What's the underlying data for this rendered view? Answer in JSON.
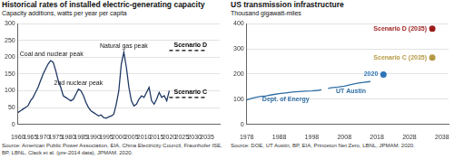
{
  "chart_data": [
    {
      "type": "line",
      "title": "Historical rates of installed electric-generating capacity",
      "subtitle": "Capacity additions, watts per year per capita",
      "source": "Source: American Public Power Association, EIA, China Electricity Council, Fraunhofer ISE, BP, LBNL, Clack et al. (pre-2014 data), JPMAM. 2020.",
      "x": [
        1960,
        1961,
        1962,
        1963,
        1964,
        1965,
        1966,
        1967,
        1968,
        1969,
        1970,
        1971,
        1972,
        1973,
        1974,
        1975,
        1976,
        1977,
        1978,
        1979,
        1980,
        1981,
        1982,
        1983,
        1984,
        1985,
        1986,
        1987,
        1988,
        1989,
        1990,
        1991,
        1992,
        1993,
        1994,
        1995,
        1996,
        1997,
        1998,
        1999,
        2000,
        2001,
        2002,
        2003,
        2004,
        2005,
        2006,
        2007,
        2008,
        2009,
        2010,
        2011,
        2012,
        2013,
        2014,
        2015,
        2016,
        2017,
        2018,
        2019,
        2020
      ],
      "values": [
        35,
        40,
        45,
        50,
        55,
        70,
        80,
        95,
        110,
        130,
        150,
        165,
        180,
        190,
        185,
        160,
        130,
        110,
        85,
        80,
        75,
        70,
        75,
        90,
        105,
        100,
        85,
        65,
        50,
        40,
        35,
        30,
        25,
        28,
        20,
        18,
        22,
        25,
        30,
        60,
        100,
        180,
        215,
        170,
        110,
        70,
        55,
        60,
        75,
        85,
        80,
        95,
        110,
        70,
        60,
        75,
        95,
        80,
        85,
        70,
        100
      ],
      "color": "#1f3864",
      "scenarios": [
        {
          "name": "Scenario D",
          "x": [
            2020,
            2035
          ],
          "values": [
            220,
            220
          ],
          "color": "#000000",
          "line_style": "dashed"
        },
        {
          "name": "Scenario C",
          "x": [
            2020,
            2035
          ],
          "values": [
            80,
            80
          ],
          "color": "#000000",
          "line_style": "dashed"
        }
      ],
      "annotations": [
        {
          "text": "Coal and nuclear peak",
          "x": 1973,
          "y": 190
        },
        {
          "text": "2nd nuclear peak",
          "x": 1984,
          "y": 105
        },
        {
          "text": "Natural gas peak",
          "x": 2002,
          "y": 215
        }
      ],
      "xlim": [
        1960,
        2040
      ],
      "xticks": [
        1960,
        1965,
        1970,
        1975,
        1980,
        1985,
        1990,
        1995,
        2000,
        2005,
        2010,
        2015,
        2020,
        2025,
        2030,
        2035
      ],
      "ylim": [
        0,
        300
      ],
      "yticks": [
        0,
        50,
        100,
        150,
        200,
        250,
        300
      ],
      "grid": true
    },
    {
      "type": "line",
      "title": "US transmission infrastructure",
      "subtitle": "Thousand gigawatt-miles",
      "source": "Source: DOE, UT Austin, BP, EIA, Princeton Net Zero, LBNL, JPMAM. 2020.",
      "series": [
        {
          "name": "Dept. of Energy",
          "color": "#2e6da4",
          "x": [
            1978,
            1980,
            1982,
            1984,
            1986,
            1988,
            1990,
            1992,
            1994,
            1996,
            1998,
            2000,
            2001
          ],
          "values": [
            97,
            105,
            110,
            113,
            118,
            122,
            125,
            128,
            130,
            132,
            133,
            135,
            137
          ]
        },
        {
          "name": "UT Austin",
          "color": "#2e6da4",
          "x": [
            2003,
            2004,
            2006,
            2008,
            2010,
            2012,
            2014,
            2016
          ],
          "values": [
            143,
            145,
            148,
            152,
            158,
            163,
            167,
            170
          ]
        },
        {
          "name": "2020",
          "color": "#2e75b6",
          "marker": "circle",
          "x": [
            2020
          ],
          "values": [
            198
          ]
        },
        {
          "name": "Scenario D (2035)",
          "color": "#9b1c1c",
          "marker": "circle",
          "x": [
            2035
          ],
          "values": [
            380
          ]
        },
        {
          "name": "Scenario C (2035)",
          "color": "#b59a45",
          "marker": "circle",
          "x": [
            2035
          ],
          "values": [
            265
          ]
        }
      ],
      "xlim": [
        1978,
        2040
      ],
      "xticks": [
        1978,
        1988,
        1998,
        2008,
        2018,
        2028,
        2038
      ],
      "ylim": [
        0,
        400
      ],
      "yticks": [
        0,
        100,
        200,
        300,
        400
      ],
      "grid": true
    }
  ]
}
